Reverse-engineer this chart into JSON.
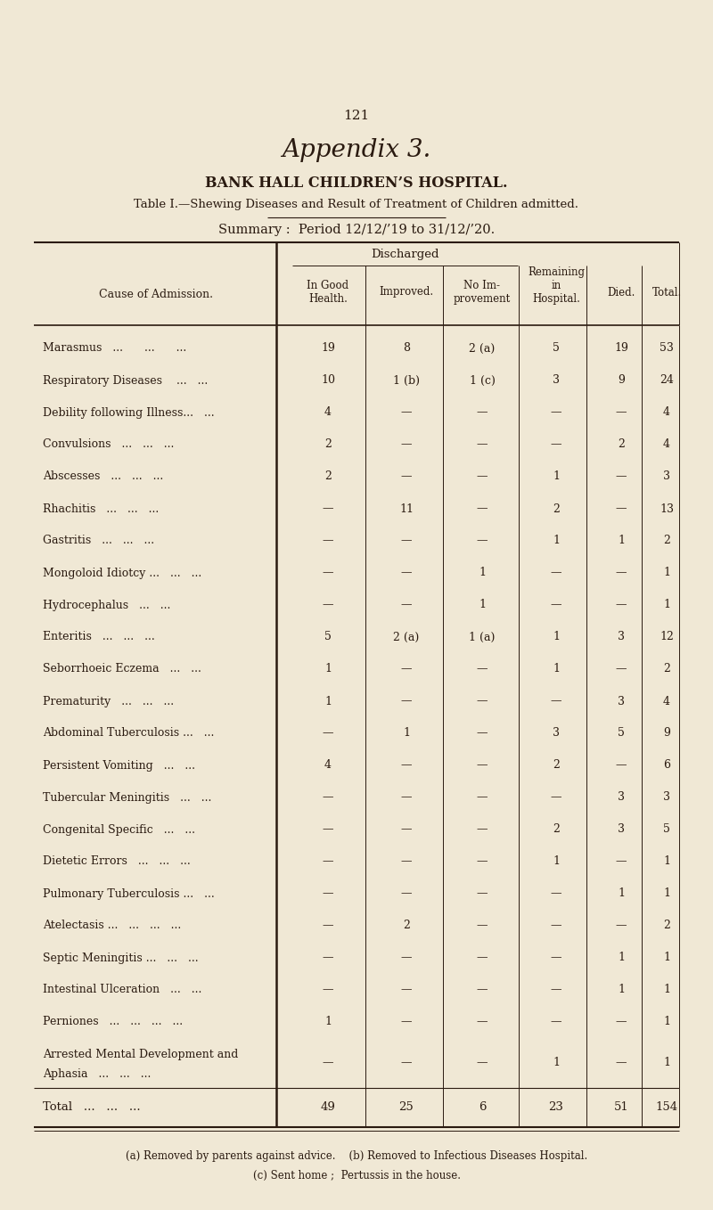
{
  "page_number": "121",
  "title_italic": "Appendix 3.",
  "title_bold": "BANK HALL CHILDREN’S HOSPITAL.",
  "subtitle": "Table I.—Shewing Diseases and Result of Treatment of Children admitted.",
  "summary_line": "Summary :  Period 12/12/’19 to 31/12/’20.",
  "bg_color": "#f0e8d5",
  "text_color": "#2a1a10",
  "rows": [
    {
      "cause": "Marasmus   ...      ...      ...",
      "good": "19",
      "improved": "8",
      "no_imp": "2 (a)",
      "remaining": "5",
      "died": "19",
      "total": "53"
    },
    {
      "cause": "Respiratory Diseases    ...   ...",
      "good": "10",
      "improved": "1 (b)",
      "no_imp": "1 (c)",
      "remaining": "3",
      "died": "9",
      "total": "24"
    },
    {
      "cause": "Debility following Illness...   ...",
      "good": "4",
      "improved": "—",
      "no_imp": "—",
      "remaining": "—",
      "died": "—",
      "total": "4"
    },
    {
      "cause": "Convulsions   ...   ...   ...",
      "good": "2",
      "improved": "—",
      "no_imp": "—",
      "remaining": "—",
      "died": "2",
      "total": "4"
    },
    {
      "cause": "Abscesses   ...   ...   ...",
      "good": "2",
      "improved": "—",
      "no_imp": "—",
      "remaining": "1",
      "died": "—",
      "total": "3"
    },
    {
      "cause": "Rhachitis   ...   ...   ...",
      "good": "—",
      "improved": "11",
      "no_imp": "—",
      "remaining": "2",
      "died": "—",
      "total": "13"
    },
    {
      "cause": "Gastritis   ...   ...   ...",
      "good": "—",
      "improved": "—",
      "no_imp": "—",
      "remaining": "1",
      "died": "1",
      "total": "2"
    },
    {
      "cause": "Mongoloid Idiotcy ...   ...   ...",
      "good": "—",
      "improved": "—",
      "no_imp": "1",
      "remaining": "—",
      "died": "—",
      "total": "1"
    },
    {
      "cause": "Hydrocephalus   ...   ...",
      "good": "—",
      "improved": "—",
      "no_imp": "1",
      "remaining": "—",
      "died": "—",
      "total": "1"
    },
    {
      "cause": "Enteritis   ...   ...   ...",
      "good": "5",
      "improved": "2 (a)",
      "no_imp": "1 (a)",
      "remaining": "1",
      "died": "3",
      "total": "12"
    },
    {
      "cause": "Seborrhoeic Eczema   ...   ...",
      "good": "1",
      "improved": "—",
      "no_imp": "—",
      "remaining": "1",
      "died": "—",
      "total": "2"
    },
    {
      "cause": "Prematurity   ...   ...   ...",
      "good": "1",
      "improved": "—",
      "no_imp": "—",
      "remaining": "—",
      "died": "3",
      "total": "4"
    },
    {
      "cause": "Abdominal Tuberculosis ...   ...",
      "good": "—",
      "improved": "1",
      "no_imp": "—",
      "remaining": "3",
      "died": "5",
      "total": "9"
    },
    {
      "cause": "Persistent Vomiting   ...   ...",
      "good": "4",
      "improved": "—",
      "no_imp": "—",
      "remaining": "2",
      "died": "—",
      "total": "6"
    },
    {
      "cause": "Tubercular Meningitis   ...   ...",
      "good": "—",
      "improved": "—",
      "no_imp": "—",
      "remaining": "—",
      "died": "3",
      "total": "3"
    },
    {
      "cause": "Congenital Specific   ...   ...",
      "good": "—",
      "improved": "—",
      "no_imp": "—",
      "remaining": "2",
      "died": "3",
      "total": "5"
    },
    {
      "cause": "Dietetic Errors   ...   ...   ...",
      "good": "—",
      "improved": "—",
      "no_imp": "—",
      "remaining": "1",
      "died": "—",
      "total": "1"
    },
    {
      "cause": "Pulmonary Tuberculosis ...   ...",
      "good": "—",
      "improved": "—",
      "no_imp": "—",
      "remaining": "—",
      "died": "1",
      "total": "1"
    },
    {
      "cause": "Atelectasis ...   ...   ...   ...",
      "good": "—",
      "improved": "2",
      "no_imp": "—",
      "remaining": "—",
      "died": "—",
      "total": "2"
    },
    {
      "cause": "Septic Meningitis ...   ...   ...",
      "good": "—",
      "improved": "—",
      "no_imp": "—",
      "remaining": "—",
      "died": "1",
      "total": "1"
    },
    {
      "cause": "Intestinal Ulceration   ...   ...",
      "good": "—",
      "improved": "—",
      "no_imp": "—",
      "remaining": "—",
      "died": "1",
      "total": "1"
    },
    {
      "cause": "Perniones   ...   ...   ...   ...",
      "good": "1",
      "improved": "—",
      "no_imp": "—",
      "remaining": "—",
      "died": "—",
      "total": "1"
    },
    {
      "cause": "Arrested Mental Development and|    Aphasia   ...   ...   ...",
      "good": "—",
      "improved": "—",
      "no_imp": "—",
      "remaining": "1",
      "died": "—",
      "total": "1"
    }
  ],
  "total_row": {
    "cause": "Total   ...   ...   ...",
    "good": "49",
    "improved": "25",
    "no_imp": "6",
    "remaining": "23",
    "died": "51",
    "total": "154"
  },
  "footnotes": [
    "(a) Removed by parents against advice.    (b) Removed to Infectious Diseases Hospital.",
    "(c) Sent home ;  Pertussis in the house."
  ]
}
